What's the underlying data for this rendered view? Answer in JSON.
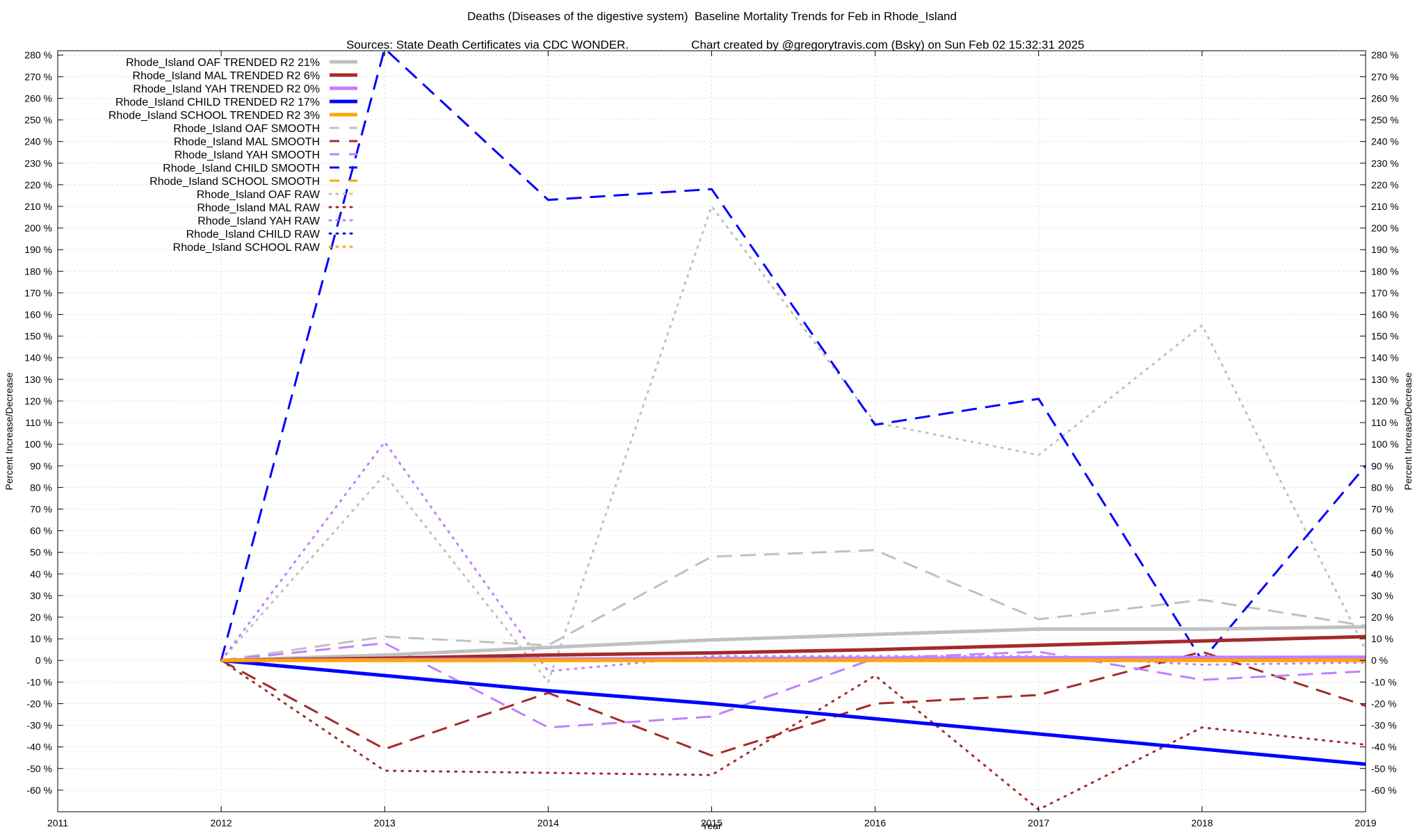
{
  "chart_data": {
    "type": "line",
    "title": "Deaths (Diseases of the digestive system)  Baseline Mortality Trends for Feb in Rhode_Island",
    "subtitle_left": "Sources: State Death Certificates via CDC WONDER.",
    "subtitle_right": "Chart created by @gregorytravis.com (Bsky) on Sun Feb 02 15:32:31 2025",
    "xlabel": "Year",
    "ylabel_left": "Percent Increase/Decrease",
    "ylabel_right": "Percent Increase/Decrease",
    "xlim": [
      2011,
      2019
    ],
    "ylim": [
      -70,
      282
    ],
    "xticks": [
      "2011",
      "2012",
      "2013",
      "2014",
      "2015",
      "2016",
      "2017",
      "2018",
      "2019"
    ],
    "yticks": [
      -60,
      -50,
      -40,
      -30,
      -20,
      -10,
      0,
      10,
      20,
      30,
      40,
      50,
      60,
      70,
      80,
      90,
      100,
      110,
      120,
      130,
      140,
      150,
      160,
      170,
      180,
      190,
      200,
      210,
      220,
      230,
      240,
      250,
      260,
      270,
      280
    ],
    "ytick_suffix": " %",
    "grid": true,
    "legend_position": "top-left",
    "x": [
      2012,
      2013,
      2014,
      2015,
      2016,
      2017,
      2018,
      2019
    ],
    "series": [
      {
        "name": "Rhode_Island OAF TRENDED R2  21%",
        "style": "solid",
        "color": "#c0c0c0",
        "values": [
          0,
          2.5,
          6,
          9.5,
          12,
          14.5,
          14.5,
          15.5
        ]
      },
      {
        "name": "Rhode_Island MAL TRENDED R2  6%",
        "style": "solid",
        "color": "#a52a2a",
        "values": [
          0,
          1,
          2.5,
          3.5,
          5,
          7,
          9,
          11
        ]
      },
      {
        "name": "Rhode_Island YAH TRENDED R2  0%",
        "style": "solid",
        "color": "#c080ff",
        "values": [
          0,
          0.3,
          0.6,
          0.9,
          1,
          1.2,
          1.4,
          1.5
        ]
      },
      {
        "name": "Rhode_Island CHILD TRENDED R2  17%",
        "style": "solid",
        "color": "#0000ff",
        "values": [
          0,
          -7,
          -14,
          -20,
          -27,
          -34,
          -41,
          -48
        ]
      },
      {
        "name": "Rhode_Island SCHOOL TRENDED R2  3%",
        "style": "solid",
        "color": "#ffa500",
        "values": [
          0,
          0,
          0,
          0,
          0,
          0,
          0,
          0
        ]
      },
      {
        "name": "Rhode_Island OAF SMOOTH",
        "style": "dashed",
        "color": "#c0c0c0",
        "values": [
          0,
          11,
          7,
          48,
          51,
          19,
          28,
          16
        ]
      },
      {
        "name": "Rhode_Island MAL SMOOTH",
        "style": "dashed",
        "color": "#a52a2a",
        "values": [
          0,
          -41,
          -15,
          -44,
          -20,
          -16,
          4,
          -21
        ]
      },
      {
        "name": "Rhode_Island YAH SMOOTH",
        "style": "dashed",
        "color": "#c080ff",
        "values": [
          0,
          8,
          -31,
          -26,
          1,
          4,
          -9,
          -5
        ]
      },
      {
        "name": "Rhode_Island CHILD SMOOTH",
        "style": "dashed",
        "color": "#0000ff",
        "values": [
          0,
          283,
          213,
          218,
          109,
          121,
          0,
          90
        ]
      },
      {
        "name": "Rhode_Island SCHOOL SMOOTH",
        "style": "dashed",
        "color": "#ffa500",
        "values": [
          0,
          0,
          0,
          0,
          0,
          0,
          0,
          0
        ]
      },
      {
        "name": "Rhode_Island OAF RAW",
        "style": "dotted",
        "color": "#c0c0c0",
        "values": [
          0,
          86,
          -10,
          210,
          110,
          95,
          155,
          5
        ]
      },
      {
        "name": "Rhode_Island MAL RAW",
        "style": "dotted",
        "color": "#a52a2a",
        "values": [
          0,
          -51,
          -52,
          -53,
          -7,
          -69,
          -31,
          -39
        ]
      },
      {
        "name": "Rhode_Island YAH RAW",
        "style": "dotted",
        "color": "#c080ff",
        "values": [
          0,
          101,
          -5,
          2,
          2,
          2,
          -2,
          -1
        ]
      },
      {
        "name": "Rhode_Island CHILD RAW",
        "style": "dotted",
        "color": "#0000ff",
        "values": [
          0,
          0,
          0,
          0,
          0,
          0,
          0,
          0
        ]
      },
      {
        "name": "Rhode_Island SCHOOL RAW",
        "style": "dotted",
        "color": "#ffa500",
        "values": [
          0,
          0,
          0,
          0,
          0,
          0,
          0,
          0
        ]
      }
    ]
  }
}
